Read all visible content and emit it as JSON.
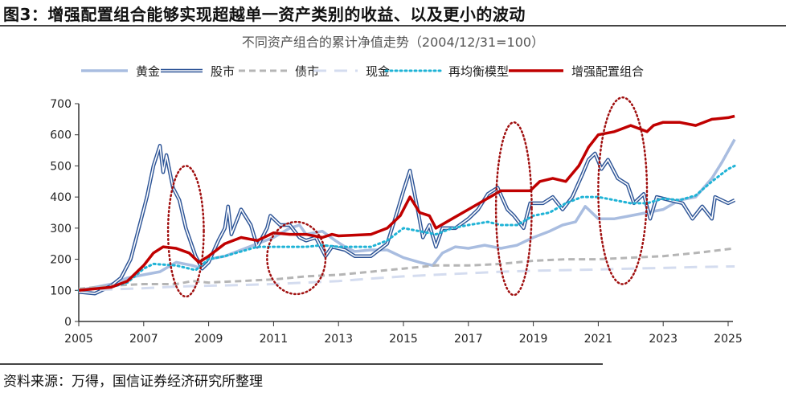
{
  "figure_title": "图3：增强配置组合能够实现超越单一资产类别的收益、以及更小的波动",
  "source": "资料来源：万得，国信证券经济研究所整理",
  "chart_data": {
    "type": "line",
    "title": "不同资产组合的累计净值走势（2004/12/31=100）",
    "xlabel": "",
    "ylabel": "",
    "xlim": [
      2005,
      2025.2
    ],
    "ylim": [
      0,
      700
    ],
    "x_ticks": [
      "2005",
      "2007",
      "2009",
      "2011",
      "2013",
      "2015",
      "2017",
      "2019",
      "2021",
      "2023",
      "2025"
    ],
    "y_ticks": [
      "0",
      "100",
      "200",
      "300",
      "400",
      "500",
      "600",
      "700"
    ],
    "grid": false,
    "legend_position": "top",
    "series": [
      {
        "name": "黄金",
        "color": "#a9bde0",
        "style": "solid-light",
        "x": [
          2005,
          2006,
          2006.5,
          2007,
          2007.5,
          2008,
          2008.5,
          2008.8,
          2009,
          2009.5,
          2010,
          2010.5,
          2011,
          2011.5,
          2011.8,
          2012,
          2012.5,
          2012.9,
          2013.2,
          2013.5,
          2014,
          2014.5,
          2015,
          2015.5,
          2015.9,
          2016.2,
          2016.6,
          2017,
          2017.5,
          2018,
          2018.5,
          2019,
          2019.5,
          2019.9,
          2020.3,
          2020.6,
          2021,
          2021.5,
          2022,
          2022.5,
          2023,
          2023.5,
          2024,
          2024.5,
          2024.8,
          2025.2
        ],
        "y": [
          100,
          120,
          140,
          150,
          160,
          190,
          180,
          170,
          200,
          210,
          230,
          250,
          270,
          300,
          310,
          280,
          290,
          260,
          240,
          225,
          230,
          230,
          205,
          190,
          180,
          220,
          240,
          235,
          245,
          235,
          245,
          270,
          290,
          310,
          320,
          370,
          330,
          330,
          340,
          350,
          360,
          390,
          400,
          460,
          510,
          585
        ]
      },
      {
        "name": "股市",
        "color": "#2e5597",
        "style": "double",
        "x": [
          2005,
          2005.5,
          2006,
          2006.3,
          2006.6,
          2006.9,
          2007.1,
          2007.3,
          2007.5,
          2007.6,
          2007.7,
          2007.9,
          2008.1,
          2008.3,
          2008.6,
          2008.8,
          2009,
          2009.3,
          2009.5,
          2009.6,
          2009.7,
          2010,
          2010.3,
          2010.5,
          2010.8,
          2010.9,
          2011.2,
          2011.5,
          2011.8,
          2012,
          2012.3,
          2012.6,
          2012.8,
          2013.2,
          2013.5,
          2014,
          2014.5,
          2014.8,
          2015,
          2015.2,
          2015.4,
          2015.6,
          2015.8,
          2016,
          2016.2,
          2016.6,
          2017,
          2017.3,
          2017.6,
          2017.9,
          2018.2,
          2018.4,
          2018.7,
          2018.9,
          2019.3,
          2019.6,
          2019.9,
          2020.2,
          2020.5,
          2020.7,
          2020.9,
          2021.1,
          2021.3,
          2021.6,
          2021.9,
          2022.1,
          2022.4,
          2022.6,
          2022.8,
          2023.2,
          2023.6,
          2023.9,
          2024.2,
          2024.5,
          2024.6,
          2025,
          2025.2
        ],
        "y": [
          95,
          90,
          115,
          140,
          200,
          320,
          400,
          500,
          565,
          480,
          535,
          430,
          390,
          300,
          210,
          170,
          190,
          260,
          300,
          370,
          280,
          360,
          310,
          240,
          300,
          340,
          310,
          310,
          270,
          260,
          270,
          210,
          240,
          230,
          210,
          210,
          250,
          350,
          420,
          485,
          380,
          270,
          310,
          240,
          300,
          300,
          330,
          360,
          410,
          430,
          360,
          340,
          300,
          380,
          380,
          400,
          360,
          400,
          470,
          520,
          540,
          490,
          520,
          460,
          440,
          380,
          410,
          330,
          400,
          390,
          380,
          330,
          370,
          330,
          400,
          380,
          390
        ]
      },
      {
        "name": "债市",
        "color": "#b5b5b5",
        "style": "dashed",
        "x": [
          2005,
          2006,
          2007,
          2008,
          2008.5,
          2009,
          2010,
          2011,
          2012,
          2013,
          2014,
          2015,
          2016,
          2017,
          2018,
          2019,
          2020,
          2021,
          2022,
          2023,
          2024,
          2025.2
        ],
        "y": [
          105,
          115,
          120,
          120,
          130,
          125,
          130,
          135,
          145,
          150,
          160,
          170,
          180,
          180,
          185,
          195,
          200,
          200,
          205,
          210,
          220,
          235
        ]
      },
      {
        "name": "现金",
        "color": "#d4dcef",
        "style": "long-dashed",
        "x": [
          2005,
          2006,
          2007,
          2008,
          2009,
          2010,
          2011,
          2012,
          2013,
          2014,
          2015,
          2016,
          2017,
          2018,
          2019,
          2020,
          2021,
          2022,
          2023,
          2024,
          2025.2
        ],
        "y": [
          100,
          103,
          107,
          112,
          115,
          117,
          120,
          125,
          130,
          138,
          145,
          150,
          155,
          160,
          163,
          165,
          167,
          170,
          172,
          175,
          177
        ]
      },
      {
        "name": "再均衡模型",
        "color": "#1fb3d6",
        "style": "dotted",
        "x": [
          2005,
          2006,
          2006.5,
          2007,
          2007.3,
          2008,
          2008.6,
          2009,
          2009.5,
          2010,
          2010.5,
          2011,
          2011.5,
          2012,
          2012.5,
          2013,
          2014,
          2014.5,
          2015,
          2015.5,
          2016,
          2016.5,
          2017,
          2017.6,
          2018,
          2018.5,
          2019,
          2019.5,
          2020,
          2020.5,
          2021,
          2021.5,
          2022,
          2022.5,
          2023,
          2023.5,
          2024,
          2024.5,
          2025,
          2025.2
        ],
        "y": [
          100,
          110,
          125,
          170,
          185,
          180,
          165,
          200,
          210,
          225,
          240,
          240,
          240,
          240,
          245,
          240,
          240,
          260,
          300,
          290,
          280,
          300,
          310,
          320,
          310,
          310,
          340,
          350,
          380,
          400,
          400,
          390,
          380,
          380,
          395,
          390,
          405,
          450,
          490,
          500
        ]
      },
      {
        "name": "增强配置组合",
        "color": "#c00000",
        "style": "thick",
        "x": [
          2005,
          2006,
          2006.5,
          2007,
          2007.3,
          2007.6,
          2008,
          2008.4,
          2008.7,
          2009,
          2009.5,
          2010,
          2010.5,
          2011,
          2011.5,
          2012,
          2012.5,
          2012.8,
          2013,
          2014,
          2014.5,
          2014.9,
          2015.2,
          2015.5,
          2015.8,
          2016,
          2016.5,
          2017,
          2017.5,
          2018,
          2018.5,
          2018.9,
          2019.2,
          2019.6,
          2020,
          2020.4,
          2020.7,
          2021,
          2021.5,
          2022,
          2022.5,
          2022.7,
          2023,
          2023.5,
          2024,
          2024.5,
          2025,
          2025.2
        ],
        "y": [
          100,
          110,
          130,
          180,
          220,
          240,
          235,
          220,
          190,
          210,
          250,
          270,
          260,
          285,
          280,
          280,
          270,
          280,
          275,
          280,
          300,
          340,
          400,
          350,
          340,
          300,
          330,
          360,
          390,
          420,
          420,
          420,
          450,
          460,
          450,
          500,
          560,
          600,
          610,
          630,
          610,
          630,
          640,
          640,
          630,
          650,
          655,
          660
        ]
      }
    ],
    "annotations": [
      {
        "shape": "dotted-ellipse",
        "color": "#a01010",
        "x_center": 2008.3,
        "x_halfwidth": 0.55,
        "y_range": [
          80,
          500
        ]
      },
      {
        "shape": "dotted-ellipse",
        "color": "#a01010",
        "x_center": 2011.7,
        "x_halfwidth": 0.9,
        "y_range": [
          88,
          320
        ]
      },
      {
        "shape": "dotted-ellipse",
        "color": "#a01010",
        "x_center": 2018.4,
        "x_halfwidth": 0.55,
        "y_range": [
          85,
          640
        ]
      },
      {
        "shape": "dotted-ellipse",
        "color": "#a01010",
        "x_center": 2021.75,
        "x_halfwidth": 0.75,
        "y_range": [
          120,
          720
        ]
      }
    ]
  }
}
